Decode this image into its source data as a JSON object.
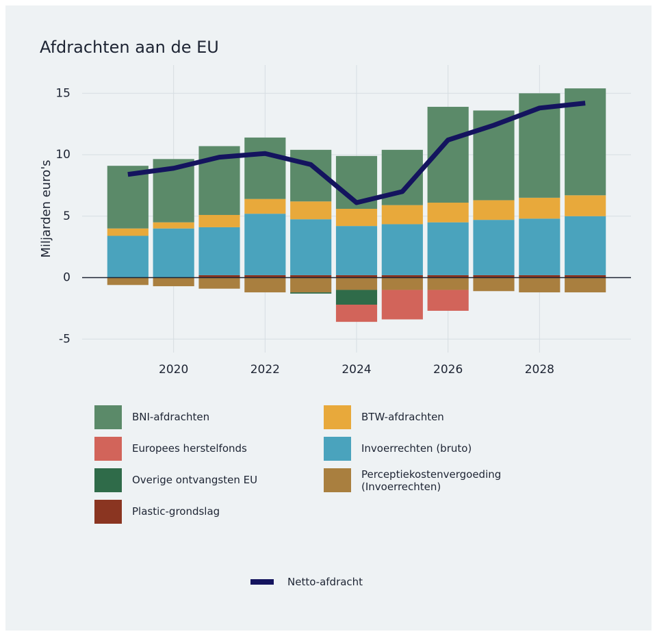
{
  "chart_data": {
    "type": "bar",
    "stacked": true,
    "title": "Afdrachten aan de EU",
    "y_label": "Miljarden euro's",
    "x": [
      2019,
      2020,
      2021,
      2022,
      2023,
      2024,
      2025,
      2026,
      2027,
      2028,
      2029
    ],
    "xlim": [
      2018,
      2030
    ],
    "xticks": [
      2020,
      2022,
      2024,
      2026,
      2028
    ],
    "ylim": [
      -6.1,
      17.3
    ],
    "yticks": [
      -5,
      0,
      5,
      10,
      15
    ],
    "grid": true,
    "series": [
      {
        "name": "BNI-afdrachten",
        "color": "#5b8a69",
        "values": [
          5.1,
          5.15,
          5.6,
          5.0,
          4.2,
          4.3,
          4.5,
          7.8,
          7.3,
          8.5,
          8.7
        ]
      },
      {
        "name": "BTW-afdrachten",
        "color": "#e8a93b",
        "values": [
          0.6,
          0.5,
          1.0,
          1.2,
          1.45,
          1.4,
          1.55,
          1.6,
          1.6,
          1.7,
          1.7
        ]
      },
      {
        "name": "Europees herstelfonds",
        "color": "#d2645a",
        "values": [
          null,
          null,
          null,
          null,
          null,
          -1.4,
          -2.4,
          -1.7,
          null,
          null,
          null
        ]
      },
      {
        "name": "Invoerrechten (bruto)",
        "color": "#4aa3bd",
        "values": [
          3.4,
          4.0,
          3.9,
          5.0,
          4.55,
          4.0,
          4.15,
          4.3,
          4.5,
          4.6,
          4.8
        ]
      },
      {
        "name": "Overige ontvangsten EU",
        "color": "#2f6b49",
        "values": [
          null,
          null,
          null,
          null,
          -0.1,
          -1.2,
          null,
          null,
          null,
          null,
          null
        ]
      },
      {
        "name": "Perceptiekostenvergoeding (Invoerrechten)",
        "color": "#a97f3f",
        "values": [
          -0.6,
          -0.7,
          -0.9,
          -1.2,
          -1.2,
          -1.0,
          -1.0,
          -1.0,
          -1.1,
          -1.2,
          -1.2
        ]
      },
      {
        "name": "Plastic-grondslag",
        "color": "#8a3521",
        "values": [
          null,
          null,
          0.2,
          0.2,
          0.2,
          0.2,
          0.2,
          0.2,
          0.2,
          0.2,
          0.2
        ]
      },
      {
        "name": "Netto-afdracht",
        "color": "#14145e",
        "type": "line",
        "values": [
          8.4,
          8.9,
          9.8,
          10.1,
          9.2,
          6.1,
          7.0,
          11.2,
          12.4,
          13.8,
          14.2
        ]
      }
    ]
  }
}
